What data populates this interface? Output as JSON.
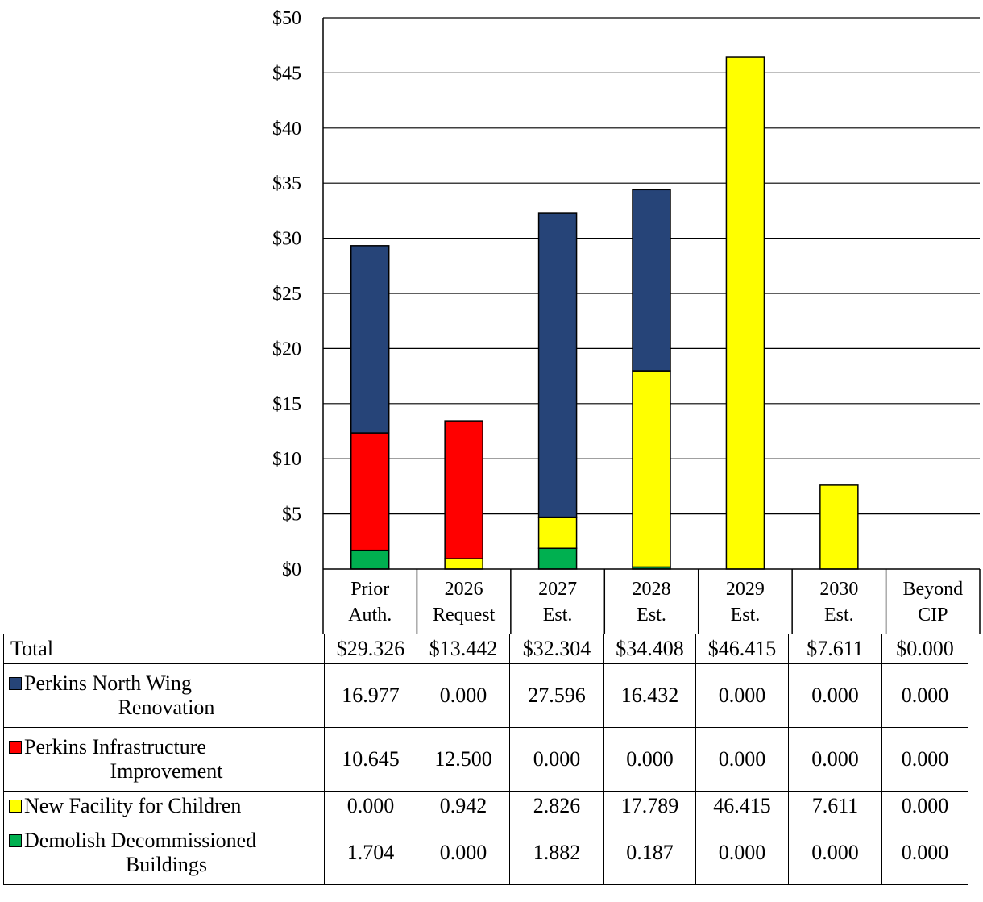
{
  "chart_data": {
    "type": "bar",
    "stacked": true,
    "categories": [
      "Prior Auth.",
      "2026 Request",
      "2027 Est.",
      "2028 Est.",
      "2029 Est.",
      "2030 Est.",
      "Beyond CIP"
    ],
    "category_lines": [
      [
        "Prior",
        "Auth."
      ],
      [
        "2026",
        "Request"
      ],
      [
        "2027",
        "Est."
      ],
      [
        "2028",
        "Est."
      ],
      [
        "2029",
        "Est."
      ],
      [
        "2030",
        "Est."
      ],
      [
        "Beyond",
        "CIP"
      ]
    ],
    "ylim": [
      0,
      50
    ],
    "yticks": [
      "$0",
      "$5",
      "$10",
      "$15",
      "$20",
      "$25",
      "$30",
      "$35",
      "$40",
      "$45",
      "$50"
    ],
    "grid": true,
    "series": [
      {
        "name": "Demolish Decommissioned Buildings",
        "name_lines": [
          "Demolish Decommissioned",
          "Buildings"
        ],
        "color": "#00b050",
        "values": [
          1.704,
          0.0,
          1.882,
          0.187,
          0.0,
          0.0,
          0.0
        ],
        "labels": [
          "1.704",
          "0.000",
          "1.882",
          "0.187",
          "0.000",
          "0.000",
          "0.000"
        ]
      },
      {
        "name": "New Facility for Children",
        "name_lines": [
          "New Facility for Children"
        ],
        "color": "#ffff00",
        "values": [
          0.0,
          0.942,
          2.826,
          17.789,
          46.415,
          7.611,
          0.0
        ],
        "labels": [
          "0.000",
          "0.942",
          "2.826",
          "17.789",
          "46.415",
          "7.611",
          "0.000"
        ]
      },
      {
        "name": "Perkins Infrastructure Improvement",
        "name_lines": [
          "Perkins Infrastructure",
          "Improvement"
        ],
        "color": "#ff0000",
        "values": [
          10.645,
          12.5,
          0.0,
          0.0,
          0.0,
          0.0,
          0.0
        ],
        "labels": [
          "10.645",
          "12.500",
          "0.000",
          "0.000",
          "0.000",
          "0.000",
          "0.000"
        ]
      },
      {
        "name": "Perkins North Wing Renovation",
        "name_lines": [
          "Perkins North Wing",
          "Renovation"
        ],
        "color": "#264478",
        "values": [
          16.977,
          0.0,
          27.596,
          16.432,
          0.0,
          0.0,
          0.0
        ],
        "labels": [
          "16.977",
          "0.000",
          "27.596",
          "16.432",
          "0.000",
          "0.000",
          "0.000"
        ]
      }
    ],
    "totals": {
      "label": "Total",
      "values": [
        "$29.326",
        "$13.442",
        "$32.304",
        "$34.408",
        "$46.415",
        "$7.611",
        "$0.000"
      ]
    },
    "table_order": [
      "Perkins North Wing Renovation",
      "Perkins Infrastructure Improvement",
      "New Facility for Children",
      "Demolish Decommissioned Buildings"
    ]
  }
}
